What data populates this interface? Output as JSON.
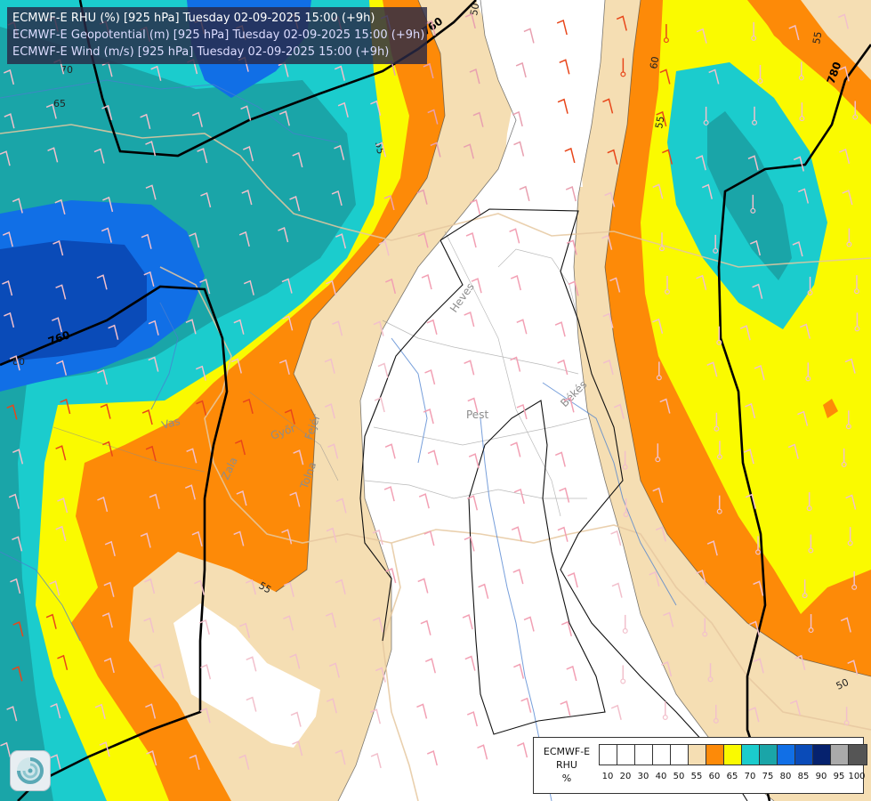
{
  "header": {
    "line1": "ECMWF-E RHU (%) [925 hPa] Tuesday 02-09-2025 15:00 (+9h)",
    "line2": "ECMWF-E Geopotential (m) [925 hPa] Tuesday 02-09-2025 15:00 (+9h)",
    "line3": "ECMWF-E Wind (m/s) [925 hPa] Tuesday 02-09-2025 15:00 (+9h)"
  },
  "legend": {
    "title_line1": "ECMWF-E",
    "title_line2": "RHU",
    "unit": "%",
    "ticks": [
      "10",
      "20",
      "30",
      "40",
      "50",
      "55",
      "60",
      "65",
      "70",
      "75",
      "80",
      "85",
      "90",
      "95",
      "100"
    ],
    "colors": [
      "#ffffff",
      "#ffffff",
      "#ffffff",
      "#ffffff",
      "#ffffff",
      "#f5deb3",
      "#fd8a08",
      "#fafa00",
      "#1bcccd",
      "#1aa5a8",
      "#116fe6",
      "#0a4bb8",
      "#06226e",
      "#aaaaaa",
      "#555555"
    ]
  },
  "map": {
    "geopotential_labels": [
      "760",
      "760",
      "780"
    ],
    "rhu_contour_labels": [
      "50",
      "55",
      "55",
      "60",
      "65",
      "70",
      "80",
      "55",
      "55",
      "50"
    ],
    "region_labels": [
      "Heves",
      "Pest",
      "Békés",
      "Vas",
      "Győr",
      "Fejér",
      "Tolna",
      "Zala"
    ]
  },
  "logo": {
    "name": "ecmwf-swirl-icon"
  }
}
